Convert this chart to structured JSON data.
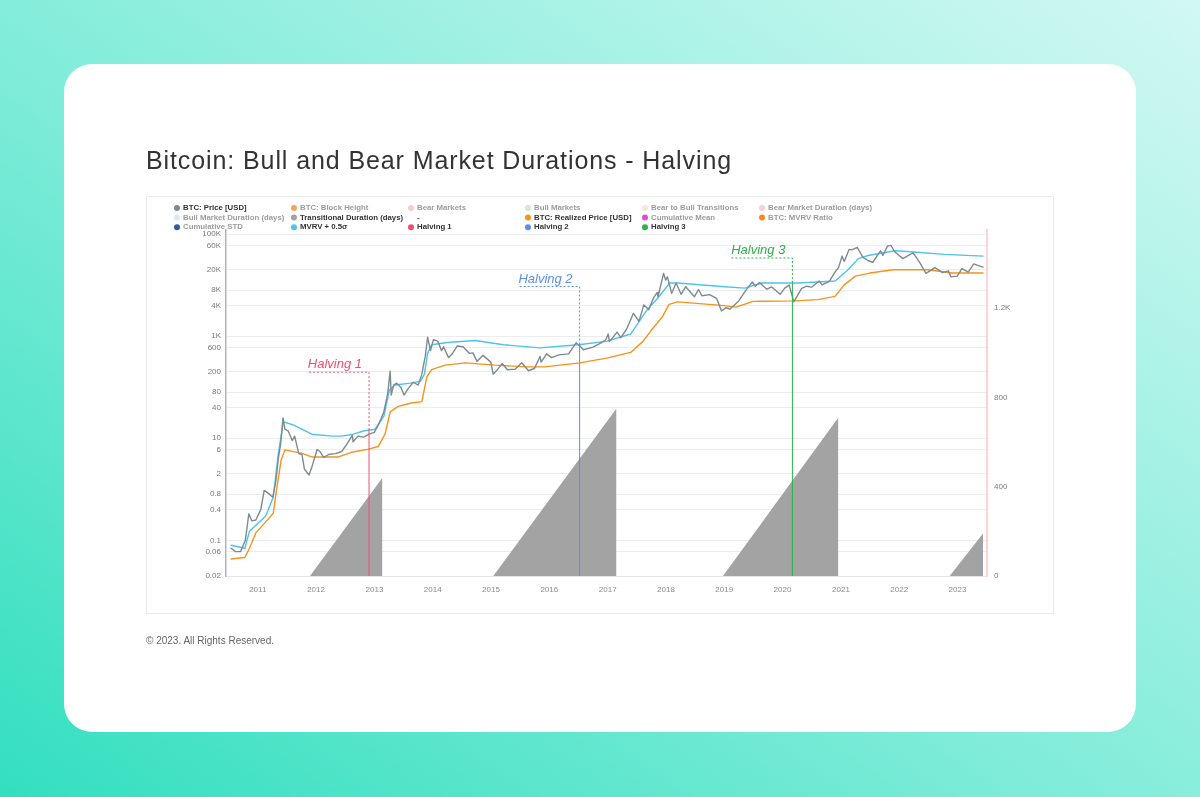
{
  "chart_data": {
    "type": "line",
    "title": "Bitcoin: Bull and Bear Market Durations - Halving",
    "annotations": [
      "© 2023. All Rights Reserved."
    ],
    "legend": "top",
    "grid": "y",
    "log": "y",
    "marker": "none",
    "xlim": [
      "2010-06-16",
      "2023-07-05"
    ],
    "xticks": [
      "2011",
      "2012",
      "2013",
      "2014",
      "2015",
      "2016",
      "2017",
      "2018",
      "2019",
      "2020",
      "2021",
      "2022",
      "2023"
    ],
    "ylim": [
      0.02,
      120000
    ],
    "yticks": [
      0.02,
      0.06,
      0.1,
      0.4,
      0.8,
      2,
      6,
      10,
      40,
      80,
      200,
      600,
      {
        "value": 1000,
        "label": "1K"
      },
      {
        "value": 4000,
        "label": "4K"
      },
      {
        "value": 8000,
        "label": "8K"
      },
      {
        "value": 20000,
        "label": "20K"
      },
      {
        "value": 60000,
        "label": "60K"
      },
      {
        "value": 100000,
        "label": "100K"
      }
    ],
    "y2lim": [
      0,
      1550
    ],
    "y2ticks": [
      0,
      400,
      800,
      {
        "value": 1200,
        "label": "1.2K"
      }
    ],
    "series": [
      {
        "name": "BTC: Price [USD]",
        "color": "#7d8a91",
        "x": [
          "2010-07-18",
          "2010-08-15",
          "2010-09-15",
          "2010-10-15",
          "2010-11-06",
          "2010-11-25",
          "2010-12-20",
          "2011-01-20",
          "2011-02-10",
          "2011-03-05",
          "2011-04-05",
          "2011-04-25",
          "2011-05-10",
          "2011-05-25",
          "2011-06-08",
          "2011-06-20",
          "2011-07-10",
          "2011-08-05",
          "2011-08-20",
          "2011-09-15",
          "2011-10-05",
          "2011-10-20",
          "2011-11-18",
          "2011-12-10",
          "2012-01-08",
          "2012-01-25",
          "2012-02-18",
          "2012-03-20",
          "2012-05-01",
          "2012-06-10",
          "2012-07-10",
          "2012-08-16",
          "2012-08-20",
          "2012-09-20",
          "2012-10-25",
          "2012-11-28",
          "2012-12-31",
          "2013-02-01",
          "2013-03-01",
          "2013-03-25",
          "2013-04-09",
          "2013-04-16",
          "2013-05-01",
          "2013-05-20",
          "2013-06-15",
          "2013-07-05",
          "2013-08-01",
          "2013-09-01",
          "2013-10-02",
          "2013-10-25",
          "2013-11-15",
          "2013-11-30",
          "2013-12-18",
          "2014-01-05",
          "2014-02-01",
          "2014-02-25",
          "2014-03-10",
          "2014-04-10",
          "2014-05-01",
          "2014-06-03",
          "2014-07-10",
          "2014-08-18",
          "2014-09-10",
          "2014-10-05",
          "2014-11-12",
          "2014-12-31",
          "2015-01-14",
          "2015-02-10",
          "2015-03-11",
          "2015-04-14",
          "2015-06-01",
          "2015-07-12",
          "2015-08-24",
          "2015-10-01",
          "2015-11-04",
          "2015-11-11",
          "2015-12-15",
          "2016-01-15",
          "2016-03-01",
          "2016-05-01",
          "2016-06-17",
          "2016-07-09",
          "2016-08-02",
          "2016-10-01",
          "2016-11-15",
          "2016-12-20",
          "2017-01-04",
          "2017-01-12",
          "2017-03-01",
          "2017-03-24",
          "2017-05-01",
          "2017-06-11",
          "2017-07-16",
          "2017-08-15",
          "2017-09-15",
          "2017-10-15",
          "2017-11-08",
          "2017-11-12",
          "2017-12-17",
          "2017-12-30",
          "2018-01-10",
          "2018-02-06",
          "2018-03-05",
          "2018-04-06",
          "2018-05-05",
          "2018-06-28",
          "2018-07-24",
          "2018-08-14",
          "2018-10-01",
          "2018-11-14",
          "2018-12-15",
          "2019-01-10",
          "2019-02-07",
          "2019-04-02",
          "2019-05-15",
          "2019-06-26",
          "2019-07-15",
          "2019-08-10",
          "2019-09-24",
          "2019-10-26",
          "2019-12-17",
          "2020-01-15",
          "2020-02-12",
          "2020-03-12",
          "2020-04-30",
          "2020-06-01",
          "2020-07-01",
          "2020-08-17",
          "2020-09-05",
          "2020-10-20",
          "2020-11-25",
          "2020-12-17",
          "2021-01-08",
          "2021-01-22",
          "2021-02-21",
          "2021-03-10",
          "2021-04-13",
          "2021-05-19",
          "2021-06-22",
          "2021-07-20",
          "2021-09-06",
          "2021-09-21",
          "2021-10-20",
          "2021-11-10",
          "2021-12-04",
          "2022-01-24",
          "2022-03-29",
          "2022-05-12",
          "2022-06-18",
          "2022-08-13",
          "2022-09-30",
          "2022-11-05",
          "2022-11-21",
          "2022-12-31",
          "2023-01-29",
          "2023-03-10",
          "2023-04-13",
          "2023-05-12",
          "2023-06-10"
        ],
        "values": [
          0.07,
          0.06,
          0.06,
          0.1,
          0.33,
          0.24,
          0.25,
          0.4,
          0.95,
          0.85,
          0.7,
          1.5,
          4,
          8,
          25,
          15,
          14,
          9,
          11,
          5,
          4.8,
          2.5,
          1.9,
          3,
          6,
          5.5,
          4.2,
          4.8,
          5,
          5.5,
          7.5,
          11.5,
          8.5,
          11,
          10.5,
          12,
          13,
          20,
          33,
          75,
          205,
          70,
          110,
          120,
          100,
          70,
          95,
          125,
          110,
          180,
          400,
          950,
          520,
          850,
          800,
          520,
          620,
          380,
          440,
          640,
          620,
          460,
          470,
          320,
          420,
          310,
          180,
          220,
          290,
          220,
          225,
          300,
          210,
          235,
          400,
          310,
          450,
          380,
          430,
          450,
          740,
          650,
          540,
          610,
          720,
          850,
          1100,
          780,
          1200,
          930,
          1400,
          2800,
          1950,
          4100,
          3300,
          5600,
          7200,
          5900,
          17000,
          12500,
          14500,
          6900,
          11000,
          6600,
          9300,
          5900,
          8200,
          6200,
          6500,
          5500,
          3100,
          3600,
          3400,
          4900,
          7800,
          11500,
          9500,
          11200,
          8300,
          9200,
          6600,
          8700,
          10000,
          4700,
          8600,
          9500,
          9100,
          12000,
          10100,
          11800,
          18000,
          22000,
          37000,
          29000,
          50000,
          49000,
          55000,
          35000,
          30000,
          28000,
          47000,
          38000,
          58000,
          60000,
          45000,
          33000,
          43000,
          27000,
          17000,
          22000,
          17500,
          19000,
          14500,
          15000,
          21000,
          18000,
          26000,
          24000,
          22500
        ]
      },
      {
        "name": "BTC: Block Height",
        "color": "#f5a460"
      },
      {
        "name": "Bear Markets",
        "color": "#f9cccc"
      },
      {
        "name": "Bull Markets",
        "color": "#d6e6d9"
      },
      {
        "name": "Bear to Bull Transitions",
        "color": "#fbe6d8"
      },
      {
        "name": "Bear Market Duration (days)",
        "color": "#f9cfcf"
      },
      {
        "name": "Bull Market Duration (days)",
        "color": "#d9ebf7"
      },
      {
        "name": "Transitional Duration (days)",
        "type": "area",
        "axis": "y2",
        "color": "#a3a3a3",
        "x": [
          "2011-11-24",
          "2013-02-20",
          "2013-02-21",
          "2015-01-15",
          "2017-02-25",
          "2017-02-26",
          "2018-12-24",
          "2020-12-16",
          "2020-12-17",
          "2022-11-13",
          "2023-06-10"
        ],
        "values": [
          0,
          440,
          null,
          0,
          750,
          null,
          0,
          710,
          null,
          0,
          190
        ]
      },
      {
        "name": "-"
      },
      {
        "name": "BTC: Realized Price [USD]",
        "color": "#f7931a",
        "x": [
          "2010-07-18",
          "2010-10-12",
          "2010-11-10",
          "2010-12-20",
          "2011-02-20",
          "2011-04-08",
          "2011-05-01",
          "2011-05-28",
          "2011-06-20",
          "2011-10-01",
          "2011-12-05",
          "2012-05-20",
          "2012-08-10",
          "2012-11-25",
          "2013-01-25",
          "2013-03-08",
          "2013-04-10",
          "2013-05-30",
          "2013-08-20",
          "2013-10-25",
          "2013-11-25",
          "2013-12-25",
          "2014-03-20",
          "2014-07-25",
          "2015-01-25",
          "2015-08-20",
          "2015-12-05",
          "2016-07-09",
          "2016-12-25",
          "2017-05-25",
          "2017-08-10",
          "2017-10-01",
          "2017-12-10",
          "2018-01-20",
          "2018-03-15",
          "2018-12-15",
          "2019-03-15",
          "2019-07-01",
          "2020-03-15",
          "2020-08-10",
          "2020-11-25",
          "2021-01-20",
          "2021-04-01",
          "2021-07-01",
          "2021-11-25",
          "2022-07-01",
          "2022-11-25",
          "2023-06-10"
        ],
        "values": [
          0.043,
          0.046,
          0.07,
          0.14,
          0.23,
          0.34,
          1.1,
          3.8,
          5.9,
          5.1,
          4.3,
          4.3,
          5.3,
          6.1,
          6.9,
          12,
          33,
          42,
          49,
          52,
          160,
          220,
          270,
          300,
          270,
          250,
          250,
          300,
          370,
          480,
          790,
          1300,
          2400,
          4200,
          4700,
          4000,
          3700,
          4800,
          4900,
          5200,
          6000,
          10000,
          15000,
          17200,
          20000,
          20000,
          17200,
          17200
        ]
      },
      {
        "name": "Cumulative Mean",
        "color": "#e04bcf"
      },
      {
        "name": "BTC: MVRV Ratio",
        "color": "#f58a1f"
      },
      {
        "name": "Cumulative STD",
        "color": "#2f5d9b"
      },
      {
        "name": "MVRV + 0.5σ",
        "color": "#4dc3ee",
        "x": [
          "2010-07-18",
          "2010-10-12",
          "2010-11-10",
          "2011-02-20",
          "2011-04-08",
          "2011-05-10",
          "2011-06-10",
          "2011-08-15",
          "2011-12-05",
          "2012-04-10",
          "2012-06-10",
          "2012-08-20",
          "2012-11-01",
          "2013-01-05",
          "2013-03-01",
          "2013-04-05",
          "2013-05-10",
          "2013-08-15",
          "2013-10-15",
          "2013-11-10",
          "2013-11-30",
          "2013-12-25",
          "2014-04-01",
          "2014-09-25",
          "2015-03-20",
          "2015-09-10",
          "2015-11-01",
          "2016-07-01",
          "2016-12-25",
          "2017-05-25",
          "2017-07-25",
          "2017-09-05",
          "2017-11-10",
          "2018-01-25",
          "2018-03-15",
          "2018-12-15",
          "2019-05-10",
          "2019-08-25",
          "2020-04-10",
          "2020-11-25",
          "2021-02-15",
          "2021-04-20",
          "2021-06-20",
          "2021-12-05",
          "2022-03-15",
          "2022-10-10",
          "2023-06-10"
        ],
        "values": [
          0.08,
          0.07,
          0.15,
          0.3,
          0.7,
          5,
          21,
          18,
          12,
          11,
          11,
          12,
          14,
          15,
          27,
          89,
          110,
          120,
          130,
          180,
          460,
          680,
          750,
          820,
          680,
          610,
          590,
          680,
          790,
          1100,
          2100,
          3300,
          5500,
          11000,
          11000,
          9400,
          8700,
          11000,
          11000,
          12000,
          20000,
          33000,
          38000,
          47000,
          45000,
          40000,
          37000
        ]
      }
    ],
    "ref_lines": [
      {
        "axis": "x",
        "value": "2012-11-28",
        "label": "Halving 1",
        "color": "#ef4f6f"
      },
      {
        "axis": "x",
        "value": "2016-07-09",
        "label": "Halving 2",
        "color": "#5b8def"
      },
      {
        "axis": "x",
        "value": "2020-03-03",
        "label": "Halving 3",
        "color": "#2db14b"
      }
    ]
  }
}
